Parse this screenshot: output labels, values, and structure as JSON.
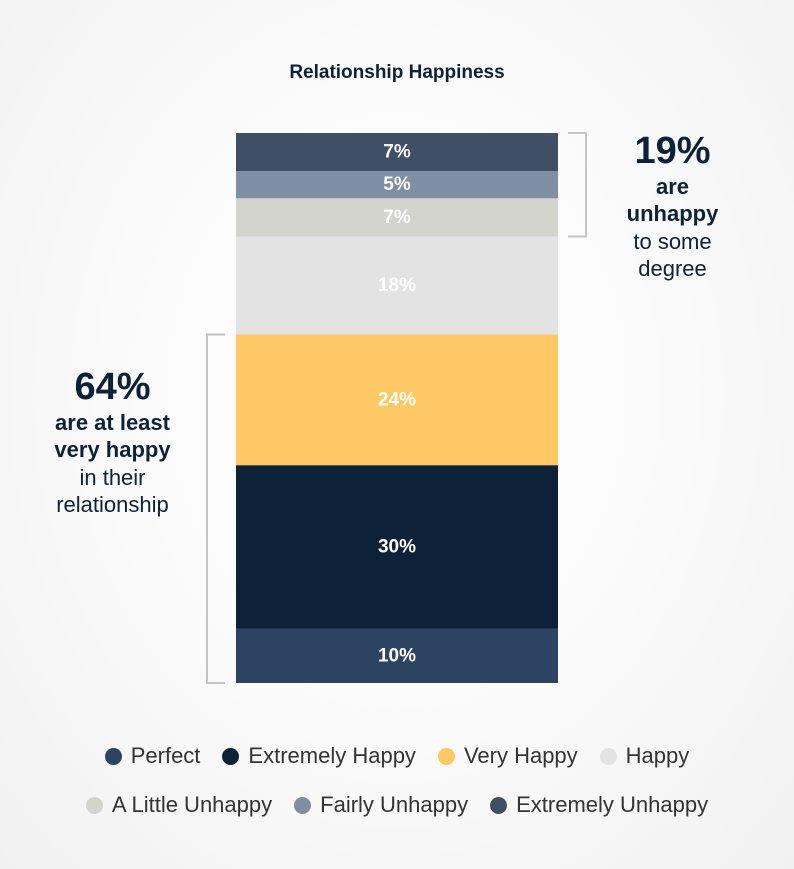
{
  "chart_data": {
    "type": "bar",
    "subtype": "100% stacked bar",
    "title": "Relationship Happiness",
    "xlabel": "",
    "ylabel": "",
    "ylim": [
      0,
      101
    ],
    "series": [
      {
        "name": "Perfect",
        "value": 10,
        "label": "10%",
        "color": "#2c4462"
      },
      {
        "name": "Extremely Happy",
        "value": 30,
        "label": "30%",
        "color": "#0d2238"
      },
      {
        "name": "Very Happy",
        "value": 24,
        "label": "24%",
        "color": "#fec964"
      },
      {
        "name": "Happy",
        "value": 18,
        "label": "18%",
        "color": "#e3e3e3"
      },
      {
        "name": "A Little Unhappy",
        "value": 7,
        "label": "7%",
        "color": "#d4d4cf"
      },
      {
        "name": "Fairly Unhappy",
        "value": 5,
        "label": "5%",
        "color": "#7f8ea2"
      },
      {
        "name": "Extremely Unhappy",
        "value": 7,
        "label": "7%",
        "color": "#3f5064"
      }
    ],
    "annotations": {
      "unhappy": {
        "value": "19%",
        "line1": "are",
        "line2": "unhappy",
        "line3": "to some",
        "line4": "degree"
      },
      "happy": {
        "value": "64%",
        "line1": "are at least",
        "line2": "very happy",
        "line3": "in their",
        "line4": "relationship"
      }
    },
    "legend": {
      "placement": "bottom",
      "row1": [
        "Perfect",
        "Extremely Happy",
        "Very Happy",
        "Happy"
      ],
      "row2": [
        "A Little Unhappy",
        "Fairly Unhappy",
        "Extremely Unhappy"
      ]
    }
  },
  "colors": {
    "text_dark": "#0d2238",
    "bracket": "#c4c4c4",
    "bar_label": "#ffffff"
  }
}
